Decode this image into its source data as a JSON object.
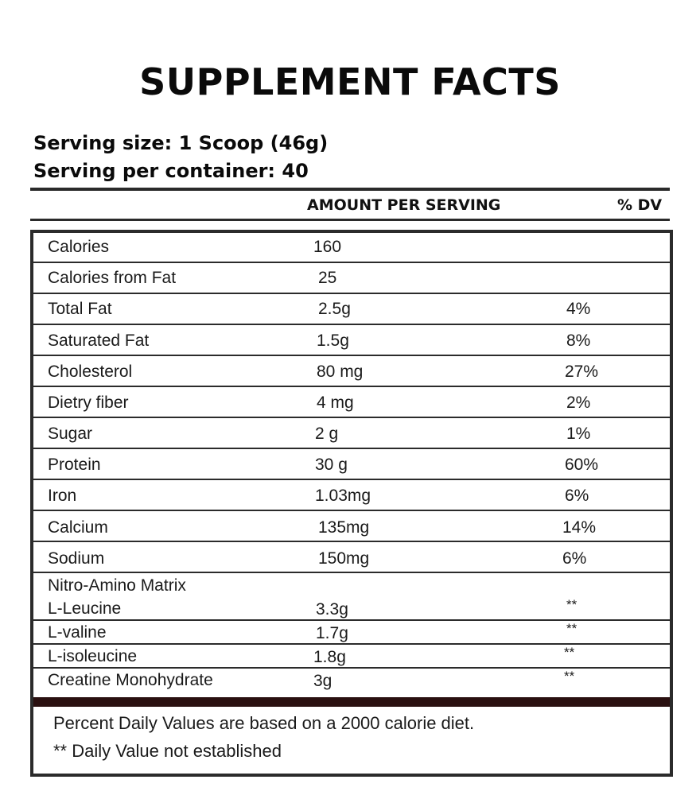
{
  "title": "SUPPLEMENT FACTS",
  "serving_size": "Serving size: 1 Scoop (46g)",
  "servings_per_container": "Serving per container: 40",
  "headers": {
    "amount": "AMOUNT PER SERVING",
    "dv": "% DV"
  },
  "rows": [
    {
      "name": "Calories",
      "amount": "160",
      "dv": ""
    },
    {
      "name": "Calories from Fat",
      "amount": "25",
      "dv": ""
    },
    {
      "name": "Total Fat",
      "amount": "2.5g",
      "dv": "4%"
    },
    {
      "name": "Saturated Fat",
      "amount": "1.5g",
      "dv": "8%"
    },
    {
      "name": "Cholesterol",
      "amount": "80 mg",
      "dv": "27%"
    },
    {
      "name": "Dietry fiber",
      "amount": "4 mg",
      "dv": "2%"
    },
    {
      "name": "Sugar",
      "amount": "2 g",
      "dv": "1%"
    },
    {
      "name": "Protein",
      "amount": "30 g",
      "dv": "60%"
    },
    {
      "name": "Iron",
      "amount": "1.03mg",
      "dv": "6%"
    },
    {
      "name": "Calcium",
      "amount": "135mg",
      "dv": "14%"
    },
    {
      "name": "Sodium",
      "amount": "150mg",
      "dv": "6%"
    },
    {
      "name": "Nitro-Amino Matrix",
      "amount": "",
      "dv": ""
    },
    {
      "name": "L-Leucine",
      "amount": "3.3g",
      "dv": "**"
    },
    {
      "name": "L-valine",
      "amount": "1.7g",
      "dv": "**"
    },
    {
      "name": "L-isoleucine",
      "amount": "1.8g",
      "dv": "**"
    },
    {
      "name": "Creatine Monohydrate",
      "amount": "3g",
      "dv": "**"
    }
  ],
  "footnotes": {
    "daily_values": "Percent Daily Values are based on a 2000 calorie diet.",
    "not_established": "** Daily Value not established"
  }
}
